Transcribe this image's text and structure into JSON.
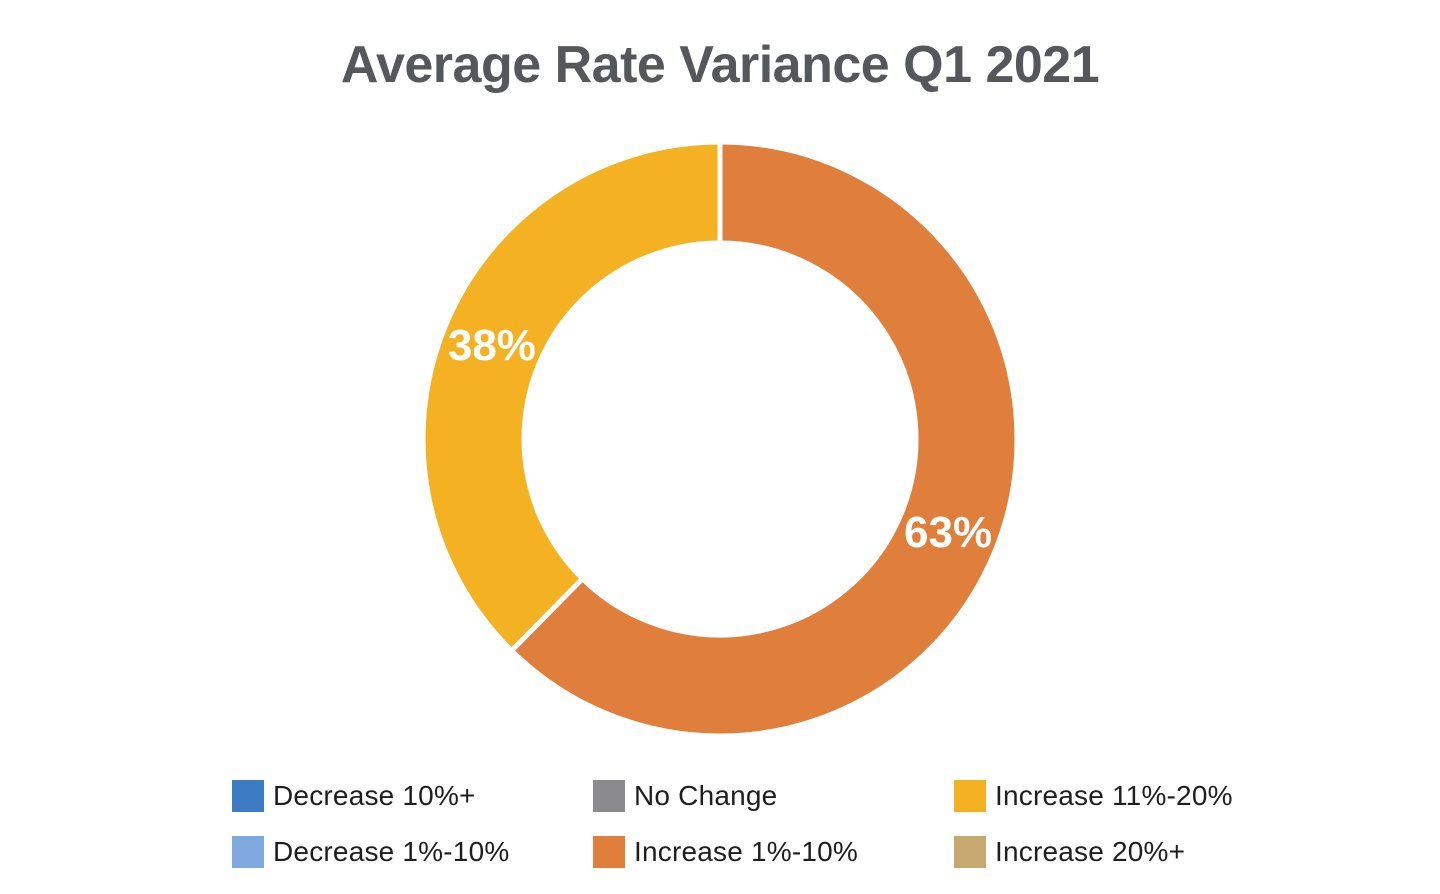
{
  "chart_data": {
    "type": "pie",
    "subtype": "donut",
    "title": "Average Rate Variance Q1 2021",
    "title_color": "#55575B",
    "background_color": "#FFFFFF",
    "start_angle_deg": 0,
    "rotation": "clockwise",
    "inner_radius_ratio": 0.66,
    "slice_gap_color": "#FFFFFF",
    "slice_label_color": "#FFFFFF",
    "slices": [
      {
        "id": "increase-1-10",
        "category": "Increase 1%-10%",
        "value": 63,
        "label": "63%",
        "color": "#E07E3B"
      },
      {
        "id": "increase-11-20",
        "category": "Increase 11%-20%",
        "value": 38,
        "label": "38%",
        "color": "#F4B223"
      }
    ],
    "legend_position": "bottom",
    "legend": [
      {
        "label": "Decrease 10%+",
        "color": "#3D7BC4"
      },
      {
        "label": "Decrease 1%-10%",
        "color": "#7FA9DE"
      },
      {
        "label": "No Change",
        "color": "#8B8B8D"
      },
      {
        "label": "Increase 1%-10%",
        "color": "#E07E3B"
      },
      {
        "label": "Increase 11%-20%",
        "color": "#F4B223"
      },
      {
        "label": "Increase 20%+",
        "color": "#C7A870"
      }
    ]
  }
}
